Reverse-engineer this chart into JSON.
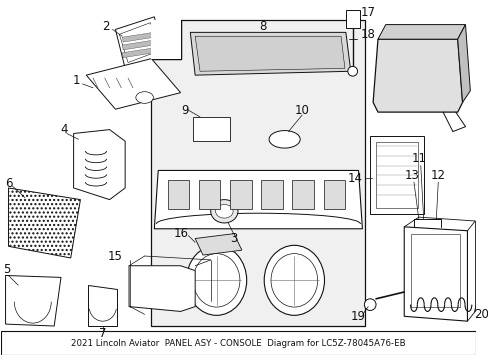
{
  "title": "2021 Lincoln Aviator  PANEL ASY - CONSOLE  Diagram for LC5Z-78045A76-EB",
  "bg_color": "#ffffff",
  "line_color": "#000000",
  "font_size_title": 6.2,
  "font_size_label": 8.5
}
